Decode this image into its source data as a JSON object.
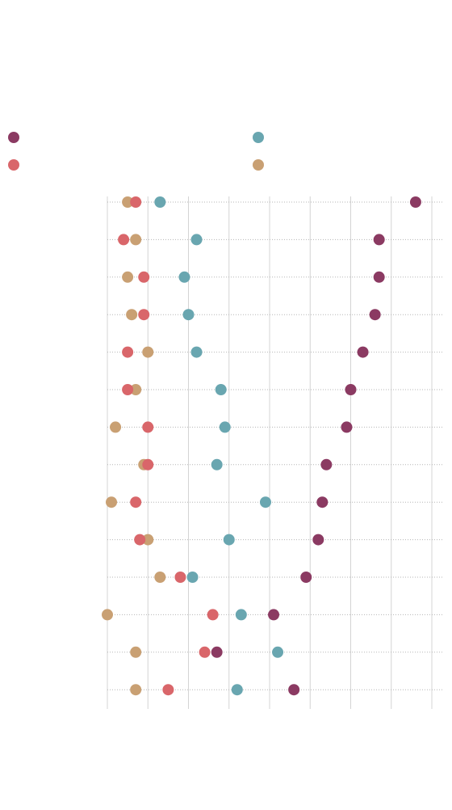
{
  "chart_data": {
    "type": "scatter",
    "title": "",
    "subtitle": "",
    "xlabel": "",
    "ylabel": "",
    "categories": [
      "",
      "",
      "",
      "",
      "",
      "",
      "",
      "",
      "",
      "",
      "",
      "",
      "",
      ""
    ],
    "xlim": [
      0,
      8
    ],
    "x_ticks": [
      0,
      1,
      2,
      3,
      4,
      5,
      6,
      7,
      8
    ],
    "x_tick_labels": [
      "",
      "",
      "",
      "",
      "",
      "",
      "",
      "",
      ""
    ],
    "grid": {
      "vertical": true,
      "horizontal_dotted": true
    },
    "legend_position": "top",
    "series": [
      {
        "color": "#8b3a62",
        "values": [
          7.6,
          6.7,
          6.7,
          6.6,
          6.3,
          6.0,
          5.9,
          5.4,
          5.3,
          5.2,
          4.9,
          4.1,
          2.7,
          4.6
        ]
      },
      {
        "color": "#69a6b0",
        "values": [
          1.3,
          2.2,
          1.9,
          2.0,
          2.2,
          2.8,
          2.9,
          2.7,
          3.9,
          3.0,
          2.1,
          3.3,
          4.2,
          3.2
        ]
      },
      {
        "color": "#d9666a",
        "values": [
          0.7,
          0.4,
          0.9,
          0.9,
          0.5,
          0.5,
          1.0,
          1.0,
          0.7,
          0.8,
          1.8,
          2.6,
          2.4,
          1.5
        ]
      },
      {
        "color": "#c9a073",
        "values": [
          0.5,
          0.7,
          0.5,
          0.6,
          1.0,
          0.7,
          0.2,
          0.9,
          0.1,
          1.0,
          1.3,
          0.0,
          0.7,
          0.7
        ]
      }
    ]
  }
}
